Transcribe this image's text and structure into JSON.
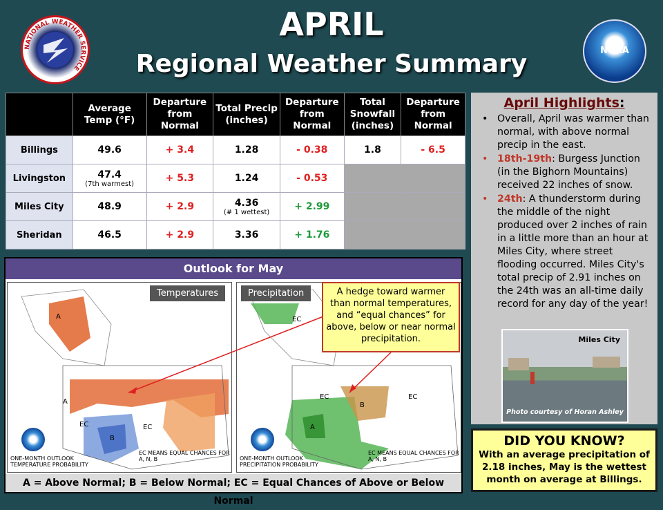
{
  "header": {
    "title_line1": "APRIL",
    "title_line2": "Regional Weather Summary"
  },
  "logos": {
    "nws_text": "NATIONAL WEATHER SERVICE",
    "noaa_text": "NOAA"
  },
  "table": {
    "headers": [
      "",
      "Average Temp (°F)",
      "Departure from Normal",
      "Total Precip (inches)",
      "Departure from Normal",
      "Total Snowfall (inches)",
      "Departure from Normal"
    ],
    "rows": [
      {
        "loc": "Billings",
        "temp": "49.6",
        "temp_note": "",
        "dep": "+ 3.4",
        "precip": "1.28",
        "precip_note": "",
        "pdep": "- 0.38",
        "snow": "1.8",
        "sdep": "- 6.5"
      },
      {
        "loc": "Livingston",
        "temp": "47.4",
        "temp_note": "(7th warmest)",
        "dep": "+ 5.3",
        "precip": "1.24",
        "precip_note": "",
        "pdep": "- 0.53",
        "snow": "",
        "sdep": ""
      },
      {
        "loc": "Miles City",
        "temp": "48.9",
        "temp_note": "",
        "dep": "+ 2.9",
        "precip": "4.36",
        "precip_note": "(# 1 wettest)",
        "pdep": "+ 2.99",
        "snow": "",
        "sdep": ""
      },
      {
        "loc": "Sheridan",
        "temp": "46.5",
        "temp_note": "",
        "dep": "+ 2.9",
        "precip": "3.36",
        "precip_note": "",
        "pdep": "+ 1.76",
        "snow": "",
        "sdep": ""
      }
    ]
  },
  "highlights": {
    "title": "April Highlights",
    "title_colon": ":",
    "b1": "Overall, April was warmer than normal, with above normal precip in the east.",
    "b2_date": "18th-19th",
    "b2": ": Burgess Junction (in the Bighorn Mountains) received 22 inches of snow.",
    "b3_date": "24th",
    "b3": ": A thunderstorm during the middle of the night produced over 2 inches of rain in a little more than an hour at Miles City, where street flooding occurred. Miles City's total precip of 2.91 inches on the 24th was an all-time daily record for any day of the year!",
    "photo_title": "Miles City",
    "photo_credit": "Photo courtesy of Horan Ashley"
  },
  "dyk": {
    "title": "DID YOU KNOW?",
    "text": "With an average precipitation of 2.18 inches, May is the wettest month on average at Billings."
  },
  "outlook": {
    "title": "Outlook for May",
    "temp_label": "Temperatures",
    "precip_label": "Precipitation",
    "temp_foot1": "ONE-MONTH OUTLOOK",
    "temp_foot2": "TEMPERATURE PROBABILITY",
    "precip_foot1": "ONE-MONTH OUTLOOK",
    "precip_foot2": "PRECIPITATION PROBABILITY",
    "ec_note": "EC MEANS EQUAL CHANCES FOR A, N, B",
    "callout": "A hedge toward warmer than normal temperatures, and “equal chances” for above, below or near normal precipitation.",
    "legend": "A = Above Normal;  B = Below Normal;  EC = Equal Chances of Above or Below Normal"
  },
  "colors": {
    "background": "#1f4a52",
    "warm": "#e0632a",
    "cool": "#6f94d8",
    "wet": "#4bb04b",
    "dry": "#c9934a",
    "highlight_box": "#c8c8c8",
    "callout_bg": "#ffff99"
  }
}
